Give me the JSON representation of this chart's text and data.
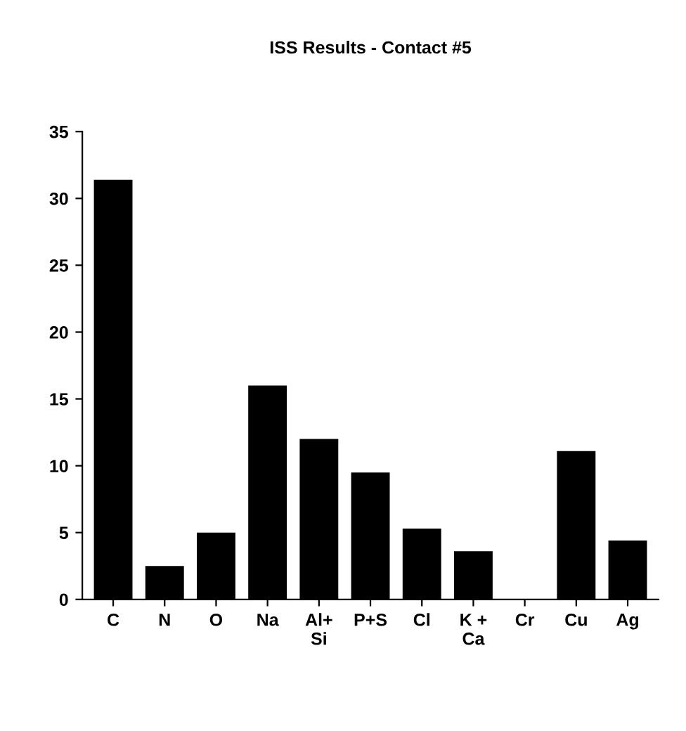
{
  "chart_data": {
    "type": "bar",
    "title": "ISS Results - Contact #5",
    "categories": [
      "C",
      "N",
      "O",
      "Na",
      "Al+\nSi",
      "P+S",
      "Cl",
      "K +\nCa",
      "Cr",
      "Cu",
      "Ag"
    ],
    "values": [
      31.4,
      2.5,
      5.0,
      16.0,
      12.0,
      9.5,
      5.3,
      3.6,
      0,
      11.1,
      4.4
    ],
    "color": "#000000",
    "ylim": [
      0,
      35
    ],
    "yticks": [
      0,
      5,
      10,
      15,
      20,
      25,
      30,
      35
    ],
    "grid": false
  }
}
